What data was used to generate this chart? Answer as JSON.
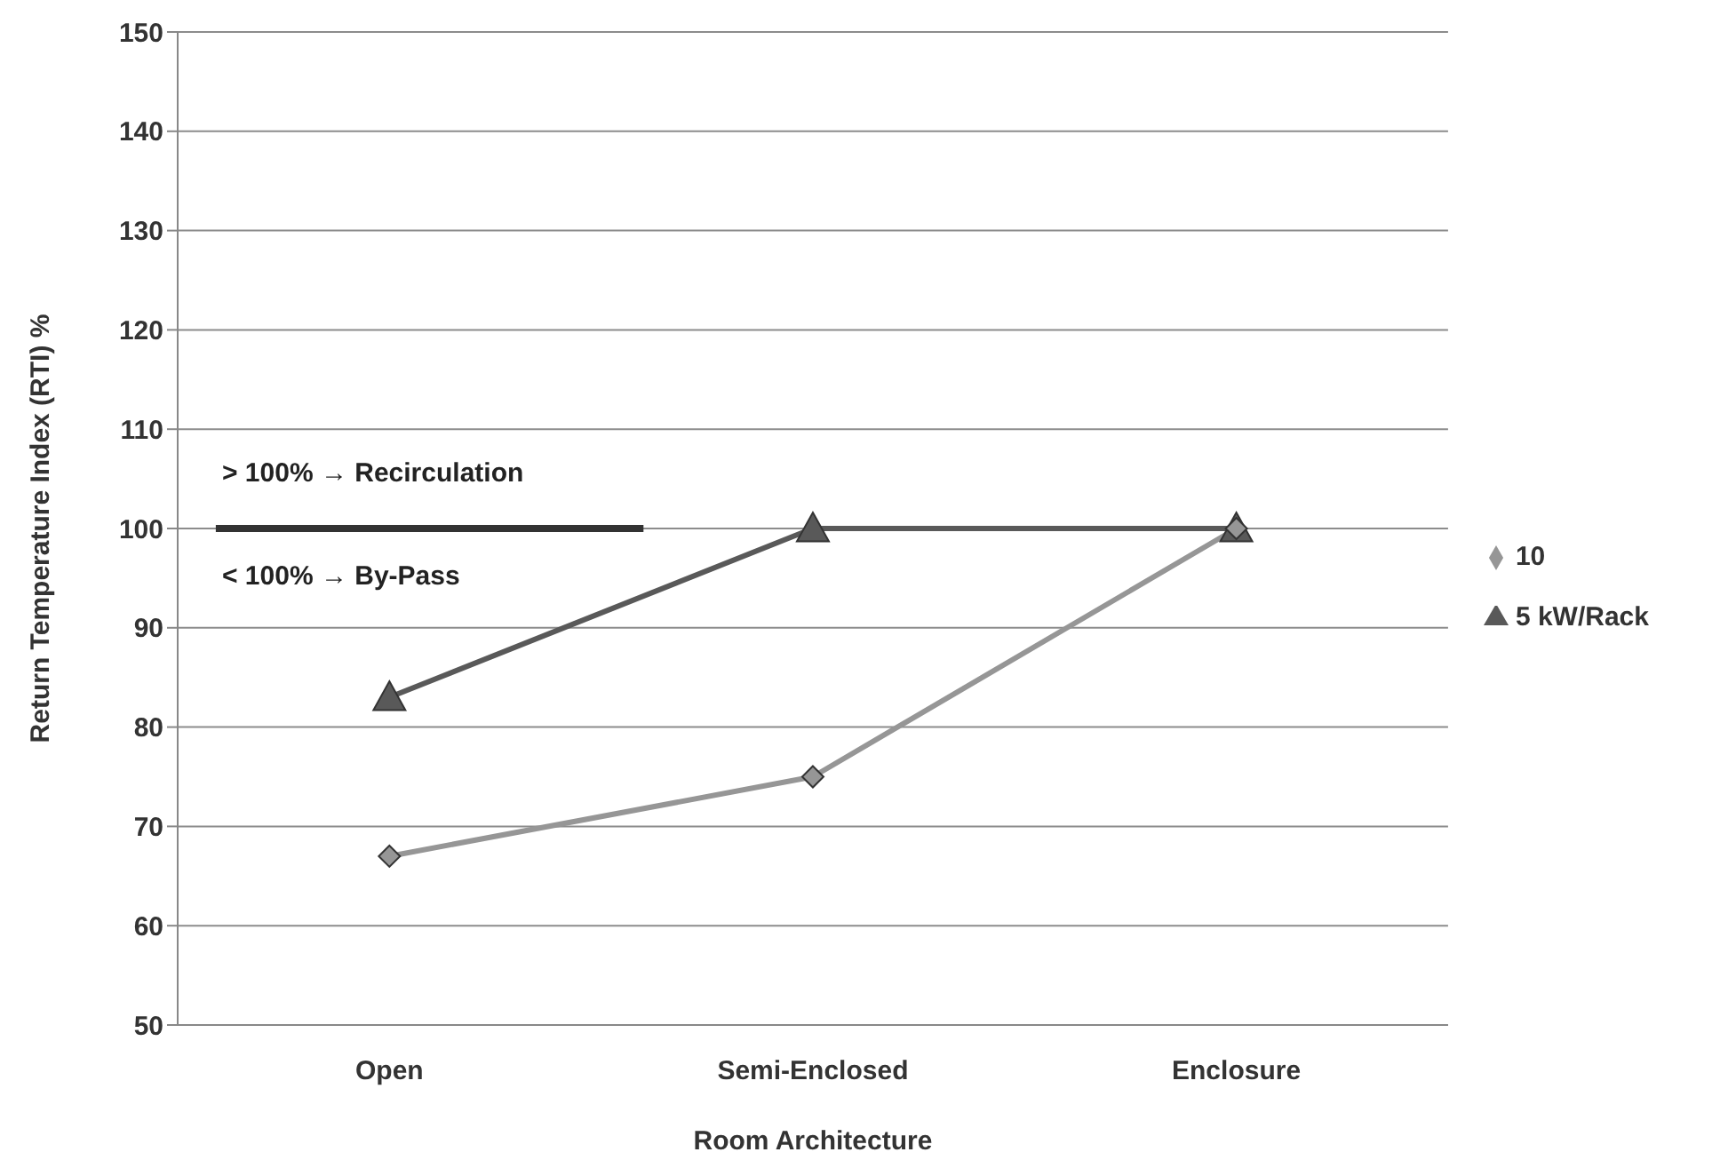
{
  "chart_data": {
    "type": "line",
    "xlabel": "Room Architecture",
    "ylabel": "Return Temperature Index (RTI) %",
    "categories": [
      "Open",
      "Semi-Enclosed",
      "Enclosure"
    ],
    "series": [
      {
        "name": "5 kW/Rack",
        "color": "#595959",
        "marker": "triangle",
        "values": [
          83,
          100,
          100
        ]
      },
      {
        "name": "10",
        "color": "#969696",
        "marker": "diamond",
        "values": [
          67,
          75,
          100
        ]
      }
    ],
    "ylim": [
      50,
      150
    ],
    "yticks": [
      50,
      60,
      70,
      80,
      90,
      100,
      110,
      120,
      130,
      140,
      150
    ],
    "grid": "y",
    "legend": "right",
    "ref_lines": [
      {
        "axis": "y",
        "value": 100,
        "color": "#333333"
      }
    ],
    "annotations": [
      "> 100% → Recirculation",
      "< 100% → By-Pass"
    ]
  }
}
